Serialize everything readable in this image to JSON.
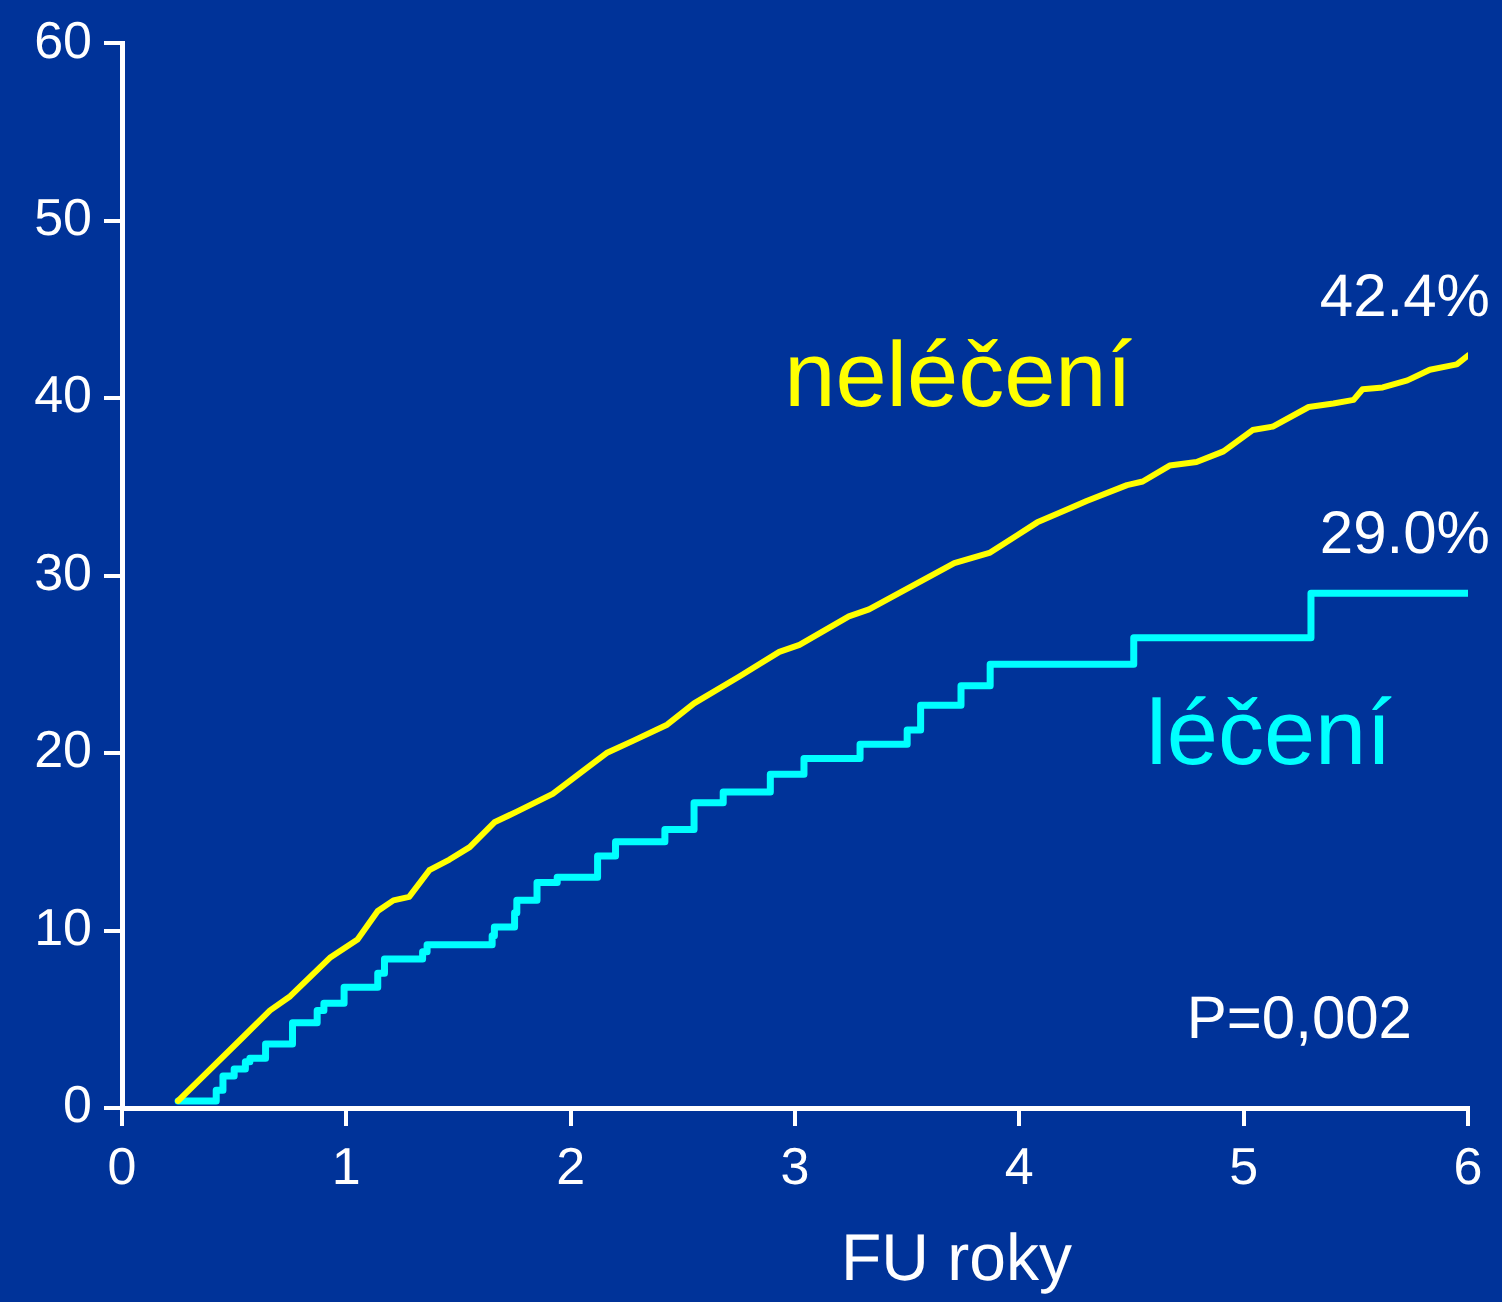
{
  "chart_data": {
    "type": "line",
    "xlabel": "FU roky",
    "xlim": [
      0,
      6
    ],
    "xticks": [
      0,
      1,
      2,
      3,
      4,
      5,
      6
    ],
    "ylim": [
      0,
      60
    ],
    "yticks": [
      0,
      10,
      20,
      30,
      40,
      50,
      60
    ],
    "legend": false,
    "marker": "none",
    "line_style": "solid",
    "series": [
      {
        "name": "neléčení",
        "type": "line",
        "color": "#ffff00",
        "x": [
          0.25,
          0.54,
          0.66,
          0.75,
          0.93,
          1.05,
          1.14,
          1.21,
          1.28,
          1.37,
          1.46,
          1.55,
          1.66,
          1.76,
          1.92,
          2.16,
          2.28,
          2.43,
          2.55,
          2.75,
          2.93,
          3.02,
          3.24,
          3.33,
          3.71,
          3.87,
          4.08,
          4.3,
          4.48,
          4.55,
          4.67,
          4.79,
          4.91,
          5.04,
          5.13,
          5.29,
          5.4,
          5.49,
          5.53,
          5.62,
          5.73,
          5.83,
          5.95,
          6
        ],
        "values": [
          0.4,
          4.0,
          5.5,
          6.3,
          8.5,
          9.5,
          11.1,
          11.7,
          11.9,
          13.4,
          14.0,
          14.7,
          16.1,
          16.7,
          17.7,
          20.0,
          20.7,
          21.6,
          22.8,
          24.3,
          25.7,
          26.1,
          27.7,
          28.1,
          30.7,
          31.3,
          33.0,
          34.2,
          35.1,
          35.3,
          36.2,
          36.4,
          37.0,
          38.2,
          38.4,
          39.5,
          39.7,
          39.9,
          40.5,
          40.6,
          41.0,
          41.6,
          41.9,
          42.4
        ]
      },
      {
        "name": "léčení",
        "type": "step",
        "color": "#00ffff",
        "x": [
          0.25,
          0.42,
          0.45,
          0.5,
          0.55,
          0.57,
          0.64,
          0.76,
          0.87,
          0.9,
          0.99,
          1.14,
          1.17,
          1.34,
          1.36,
          1.65,
          1.66,
          1.75,
          1.76,
          1.85,
          1.94,
          2.12,
          2.2,
          2.42,
          2.55,
          2.68,
          2.89,
          3.04,
          3.29,
          3.5,
          3.56,
          3.74,
          3.87,
          4.51,
          5.3,
          6
        ],
        "values": [
          0.4,
          1.0,
          1.8,
          2.2,
          2.6,
          2.8,
          3.6,
          4.8,
          5.5,
          5.9,
          6.8,
          7.6,
          8.4,
          8.8,
          9.2,
          9.7,
          10.2,
          11.0,
          11.7,
          12.7,
          13.0,
          14.2,
          15.0,
          15.7,
          17.2,
          17.8,
          18.8,
          19.7,
          20.5,
          21.3,
          22.7,
          23.8,
          25.0,
          26.5,
          29.0,
          29.0
        ]
      }
    ],
    "annotations": [
      {
        "text": "42.4%",
        "x": 6,
        "y": 42.4
      },
      {
        "text": "29.0%",
        "x": 6,
        "y": 29.0
      },
      "P=0,002"
    ]
  }
}
